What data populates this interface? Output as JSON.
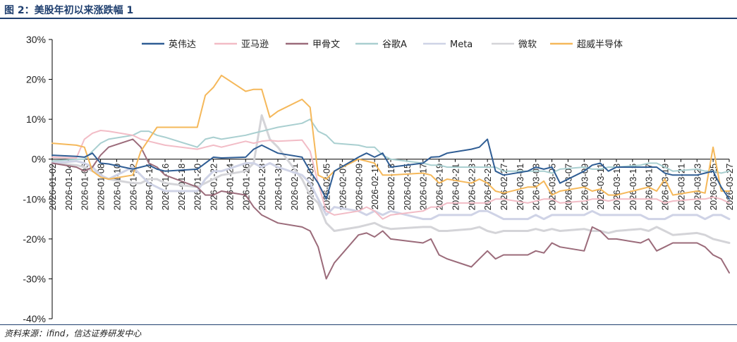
{
  "header": {
    "title": "图 2：美股年初以来涨跌幅 1"
  },
  "footer": {
    "source": "资料来源：ifind，信达证券研发中心"
  },
  "colors": {
    "英伟达": "#2f5d94",
    "亚马逊": "#f2bcc6",
    "甲骨文": "#9b6b7a",
    "谷歌A": "#a9cfd0",
    "Meta": "#cfd3e6",
    "微软": "#d4d4d8",
    "超威半导体": "#f5b85a"
  },
  "chart_data": {
    "type": "line",
    "title": "",
    "xlabel": "",
    "ylabel": "",
    "ylim": [
      -40,
      30
    ],
    "yticks": [
      30,
      20,
      10,
      0,
      -10,
      -20,
      -30,
      -40
    ],
    "ytick_labels": [
      "30%",
      "20%",
      "10%",
      "0%",
      "-10%",
      "-20%",
      "-30%",
      "-40%"
    ],
    "legend_position": "top",
    "grid": false,
    "xtick_labels": [
      "2026-01-02",
      "2026-01-04",
      "2026-01-06",
      "2026-01-08",
      "2026-01-10",
      "2026-01-12",
      "2026-01-14",
      "2026-01-16",
      "2026-01-18",
      "2026-01-20",
      "2026-01-22",
      "2026-01-24",
      "2026-01-26",
      "2026-01-28",
      "2026-01-30",
      "2026-02-01",
      "2026-02-03",
      "2026-02-05",
      "2026-02-07",
      "2026-02-09",
      "2026-02-11",
      "2026-02-13",
      "2026-02-15",
      "2026-02-17",
      "2026-02-19",
      "2026-02-21",
      "2026-02-23",
      "2026-02-25",
      "2026-02-27",
      "2026-03-01",
      "2026-03-03",
      "2026-03-05",
      "2026-03-07",
      "2026-03-09",
      "2026-03-11",
      "2026-03-13",
      "2026-03-15",
      "2026-03-17",
      "2026-03-19",
      "2026-03-21",
      "2026-03-23",
      "2026-03-25",
      "2026-03-27"
    ],
    "x": [
      "2026-01-02",
      "2026-01-05",
      "2026-01-06",
      "2026-01-07",
      "2026-01-08",
      "2026-01-09",
      "2026-01-12",
      "2026-01-13",
      "2026-01-14",
      "2026-01-15",
      "2026-01-16",
      "2026-01-20",
      "2026-01-21",
      "2026-01-22",
      "2026-01-23",
      "2026-01-26",
      "2026-01-27",
      "2026-01-28",
      "2026-01-29",
      "2026-01-30",
      "2026-02-02",
      "2026-02-03",
      "2026-02-04",
      "2026-02-05",
      "2026-02-06",
      "2026-02-09",
      "2026-02-10",
      "2026-02-11",
      "2026-02-12",
      "2026-02-13",
      "2026-02-17",
      "2026-02-18",
      "2026-02-19",
      "2026-02-20",
      "2026-02-23",
      "2026-02-24",
      "2026-02-25",
      "2026-02-26",
      "2026-02-27",
      "2026-03-02",
      "2026-03-03",
      "2026-03-04",
      "2026-03-05",
      "2026-03-06",
      "2026-03-09",
      "2026-03-10",
      "2026-03-11",
      "2026-03-12",
      "2026-03-13",
      "2026-03-16",
      "2026-03-17",
      "2026-03-18",
      "2026-03-19",
      "2026-03-20",
      "2026-03-23",
      "2026-03-24",
      "2026-03-25",
      "2026-03-26",
      "2026-03-27"
    ],
    "series": [
      {
        "name": "英伟达",
        "values": [
          1,
          0.7,
          0.5,
          1.5,
          -1,
          -1.2,
          -2.5,
          -2,
          -1.5,
          -2.5,
          -3,
          -2.5,
          -1,
          0.5,
          0.3,
          0.5,
          2.5,
          3.5,
          2.5,
          1.5,
          0.5,
          -3,
          -6,
          -10,
          -3,
          0.5,
          1.5,
          0.5,
          1.5,
          -2,
          -1,
          0.5,
          0.6,
          1.5,
          2.5,
          3,
          5,
          -3,
          -4,
          -3,
          -2,
          -2.5,
          -2,
          -6,
          -3,
          -1.5,
          -1,
          -3,
          -2,
          -2,
          -2,
          -2,
          -3.5,
          -4,
          -4,
          -3.5,
          -3,
          -7,
          -10
        ]
      },
      {
        "name": "亚马逊",
        "values": [
          0.5,
          0.3,
          5,
          6.5,
          7.2,
          7,
          6,
          5,
          4.5,
          4,
          3.5,
          2.5,
          3,
          3.5,
          3,
          4.5,
          4,
          4.5,
          4.7,
          4.5,
          4.8,
          2,
          -6,
          -13,
          -14,
          -13,
          -12,
          -13,
          -15,
          -14,
          -13,
          -12,
          -12,
          -11,
          -11,
          -11,
          -11,
          -10,
          -10,
          -11,
          -10.5,
          -10,
          -10,
          -11,
          -10.5,
          -10,
          -10,
          -10.5,
          -10,
          -10,
          -10,
          -10,
          -11,
          -10.5,
          -10,
          -10,
          -9.5,
          -10,
          -11
        ]
      },
      {
        "name": "甲骨文",
        "values": [
          -1,
          -2,
          -3,
          -2,
          1,
          3,
          5,
          3,
          -1,
          -2,
          -4,
          -7,
          -9,
          -9,
          -8,
          -9,
          -12,
          -14,
          -15,
          -16,
          -17,
          -18,
          -22,
          -30,
          -26,
          -19,
          -18.5,
          -19.5,
          -18,
          -20,
          -21,
          -20,
          -24,
          -25,
          -27,
          -25,
          -23,
          -25,
          -24,
          -24,
          -23,
          -23.5,
          -21,
          -22,
          -23,
          -17,
          -18,
          -20,
          -20,
          -21,
          -20,
          -23,
          -22,
          -21,
          -21,
          -22,
          -24,
          -25,
          -28.5
        ]
      },
      {
        "name": "谷歌A",
        "values": [
          -0.5,
          0,
          0,
          2,
          4,
          5,
          6,
          7,
          7,
          6,
          5.5,
          3,
          5,
          5.5,
          5,
          6,
          6.5,
          7,
          7.5,
          8,
          9,
          10,
          7,
          6,
          4,
          3.5,
          3,
          3,
          1,
          0,
          -1,
          -1.5,
          -1.5,
          -2,
          -2,
          -2,
          -2,
          -2,
          -3,
          -3,
          -3,
          -3,
          -3.5,
          -2.5,
          -2,
          -2.5,
          -2.5,
          -2,
          -2,
          -1.5,
          -1,
          -1,
          -2,
          -3,
          -2.5,
          -3,
          -3,
          -3.5,
          -3
        ]
      },
      {
        "name": "Meta",
        "values": [
          -1,
          -0.5,
          -1,
          -2,
          -4,
          -5,
          -2,
          -4,
          -6,
          -7,
          -8,
          -8,
          -5,
          -3,
          -3,
          -1,
          -1,
          -2,
          -1,
          -2,
          -4,
          -6,
          -10,
          -14,
          -12,
          -13,
          -14,
          -13,
          -14,
          -13,
          -15,
          -15,
          -14,
          -14,
          -14,
          -13,
          -13,
          -14,
          -15,
          -15,
          -14,
          -15,
          -14,
          -14,
          -14,
          -13,
          -14,
          -14,
          -14,
          -14,
          -15,
          -15,
          -15,
          -14,
          -14,
          -15,
          -14,
          -14,
          -15
        ]
      },
      {
        "name": "微软",
        "values": [
          -1,
          -1.5,
          -2,
          -3,
          -4,
          -5,
          -6,
          -6,
          -5,
          -5,
          -6,
          -7,
          -6,
          -5,
          -4,
          -3,
          -1,
          11,
          5,
          3,
          -5,
          -9,
          -11,
          -16,
          -18,
          -17,
          -16.5,
          -16,
          -17,
          -17.5,
          -17,
          -17,
          -18,
          -18,
          -17.5,
          -17,
          -18,
          -18.5,
          -18,
          -18,
          -17.5,
          -18,
          -17.5,
          -18,
          -17.5,
          -18,
          -18,
          -18.5,
          -18,
          -17.5,
          -18,
          -17,
          -18,
          -19,
          -18.5,
          -19,
          -20,
          -20.5,
          -21
        ]
      },
      {
        "name": "超威半导体",
        "values": [
          4,
          3.5,
          3,
          -3,
          -4.5,
          -5,
          -4,
          2,
          5,
          8,
          8,
          8,
          16,
          18,
          21,
          17,
          17.5,
          17.5,
          10.5,
          12,
          15,
          13,
          -4,
          -5,
          -3,
          0,
          -0.5,
          -1,
          -4,
          -4,
          -3.5,
          -4,
          -6,
          -5,
          -6,
          -5,
          -6,
          -8,
          -8.5,
          -7,
          -7,
          -5.5,
          -9,
          -8,
          -7,
          -8,
          -7.5,
          -9,
          -9,
          -7.5,
          -7,
          -8,
          -5,
          -9,
          -8,
          -8.5,
          3,
          -8,
          -8
        ]
      }
    ]
  }
}
